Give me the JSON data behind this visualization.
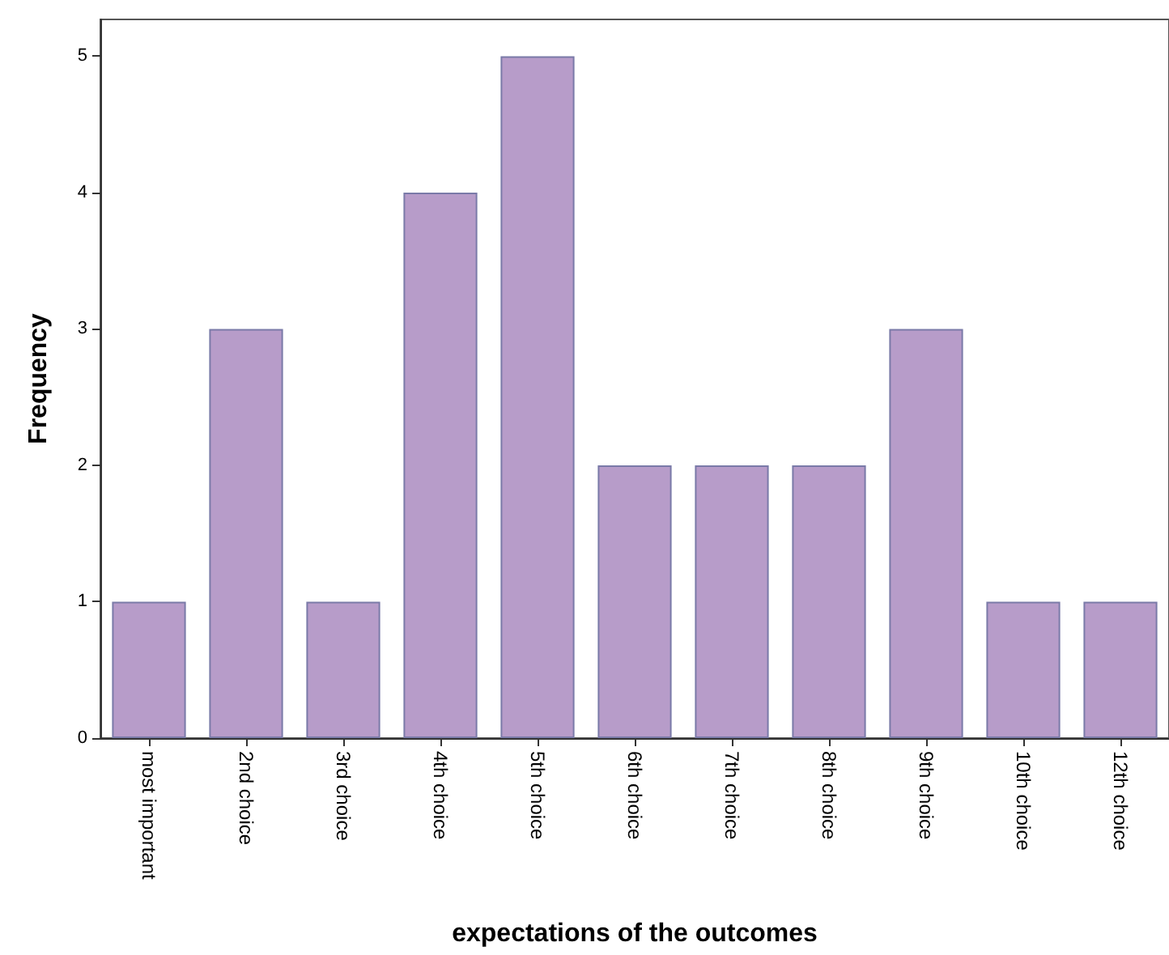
{
  "chart_data": {
    "type": "bar",
    "xlabel": "expectations of the outcomes",
    "ylabel": "Frequency",
    "categories": [
      "most important",
      "2nd choice",
      "3rd choice",
      "4th choice",
      "5th choice",
      "6th choice",
      "7th choice",
      "8th choice",
      "9th choice",
      "10th choice",
      "12th choice"
    ],
    "values": [
      1,
      3,
      1,
      4,
      5,
      2,
      2,
      2,
      3,
      1,
      1
    ],
    "color": "#b79cc9",
    "ylim": [
      0,
      5.27
    ],
    "yticks": [
      0,
      1,
      2,
      3,
      4,
      5
    ],
    "grid": false
  }
}
